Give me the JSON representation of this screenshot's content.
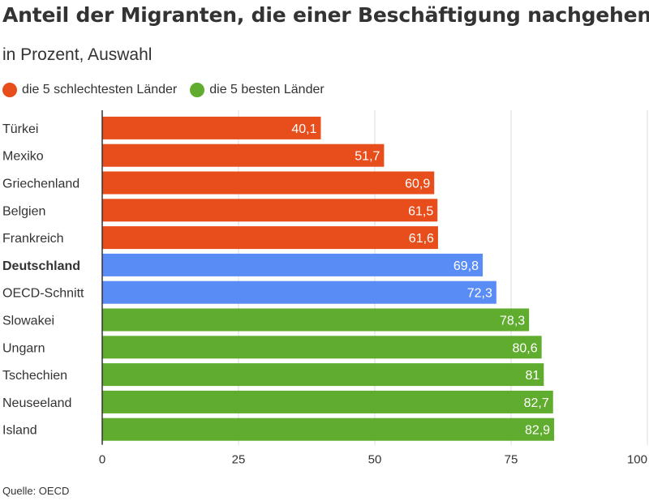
{
  "title": "Anteil der Migranten, die einer Beschäftigung nachgehen",
  "subtitle": "in Prozent, Auswahl",
  "legend": [
    {
      "label": "die 5 schlechtesten Länder",
      "color": "#e84e1b"
    },
    {
      "label": "die 5 besten Länder",
      "color": "#60ac2e"
    }
  ],
  "source": "Quelle: OECD",
  "colors": {
    "worst": "#e84e1b",
    "best": "#60ac2e",
    "highlight": "#5a8cf6",
    "grid": "#dddddd",
    "axis": "#333333"
  },
  "chart_data": {
    "type": "bar",
    "orientation": "horizontal",
    "categories": [
      "Türkei",
      "Mexiko",
      "Griechenland",
      "Belgien",
      "Frankreich",
      "Deutschland",
      "OECD-Schnitt",
      "Slowakei",
      "Ungarn",
      "Tschechien",
      "Neuseeland",
      "Island"
    ],
    "values": [
      40.1,
      51.7,
      60.9,
      61.5,
      61.6,
      69.8,
      72.3,
      78.3,
      80.6,
      81,
      82.7,
      82.9
    ],
    "value_labels": [
      "40,1",
      "51,7",
      "60,9",
      "61,5",
      "61,6",
      "69,8",
      "72,3",
      "78,3",
      "80,6",
      "81",
      "82,7",
      "82,9"
    ],
    "groups": [
      "worst",
      "worst",
      "worst",
      "worst",
      "worst",
      "highlight",
      "highlight",
      "best",
      "best",
      "best",
      "best",
      "best"
    ],
    "bold_categories": [
      "Deutschland"
    ],
    "xlim": [
      0,
      100
    ],
    "xticks": [
      0,
      25,
      50,
      75,
      100
    ],
    "grid": true,
    "legend_position": "top-left"
  }
}
